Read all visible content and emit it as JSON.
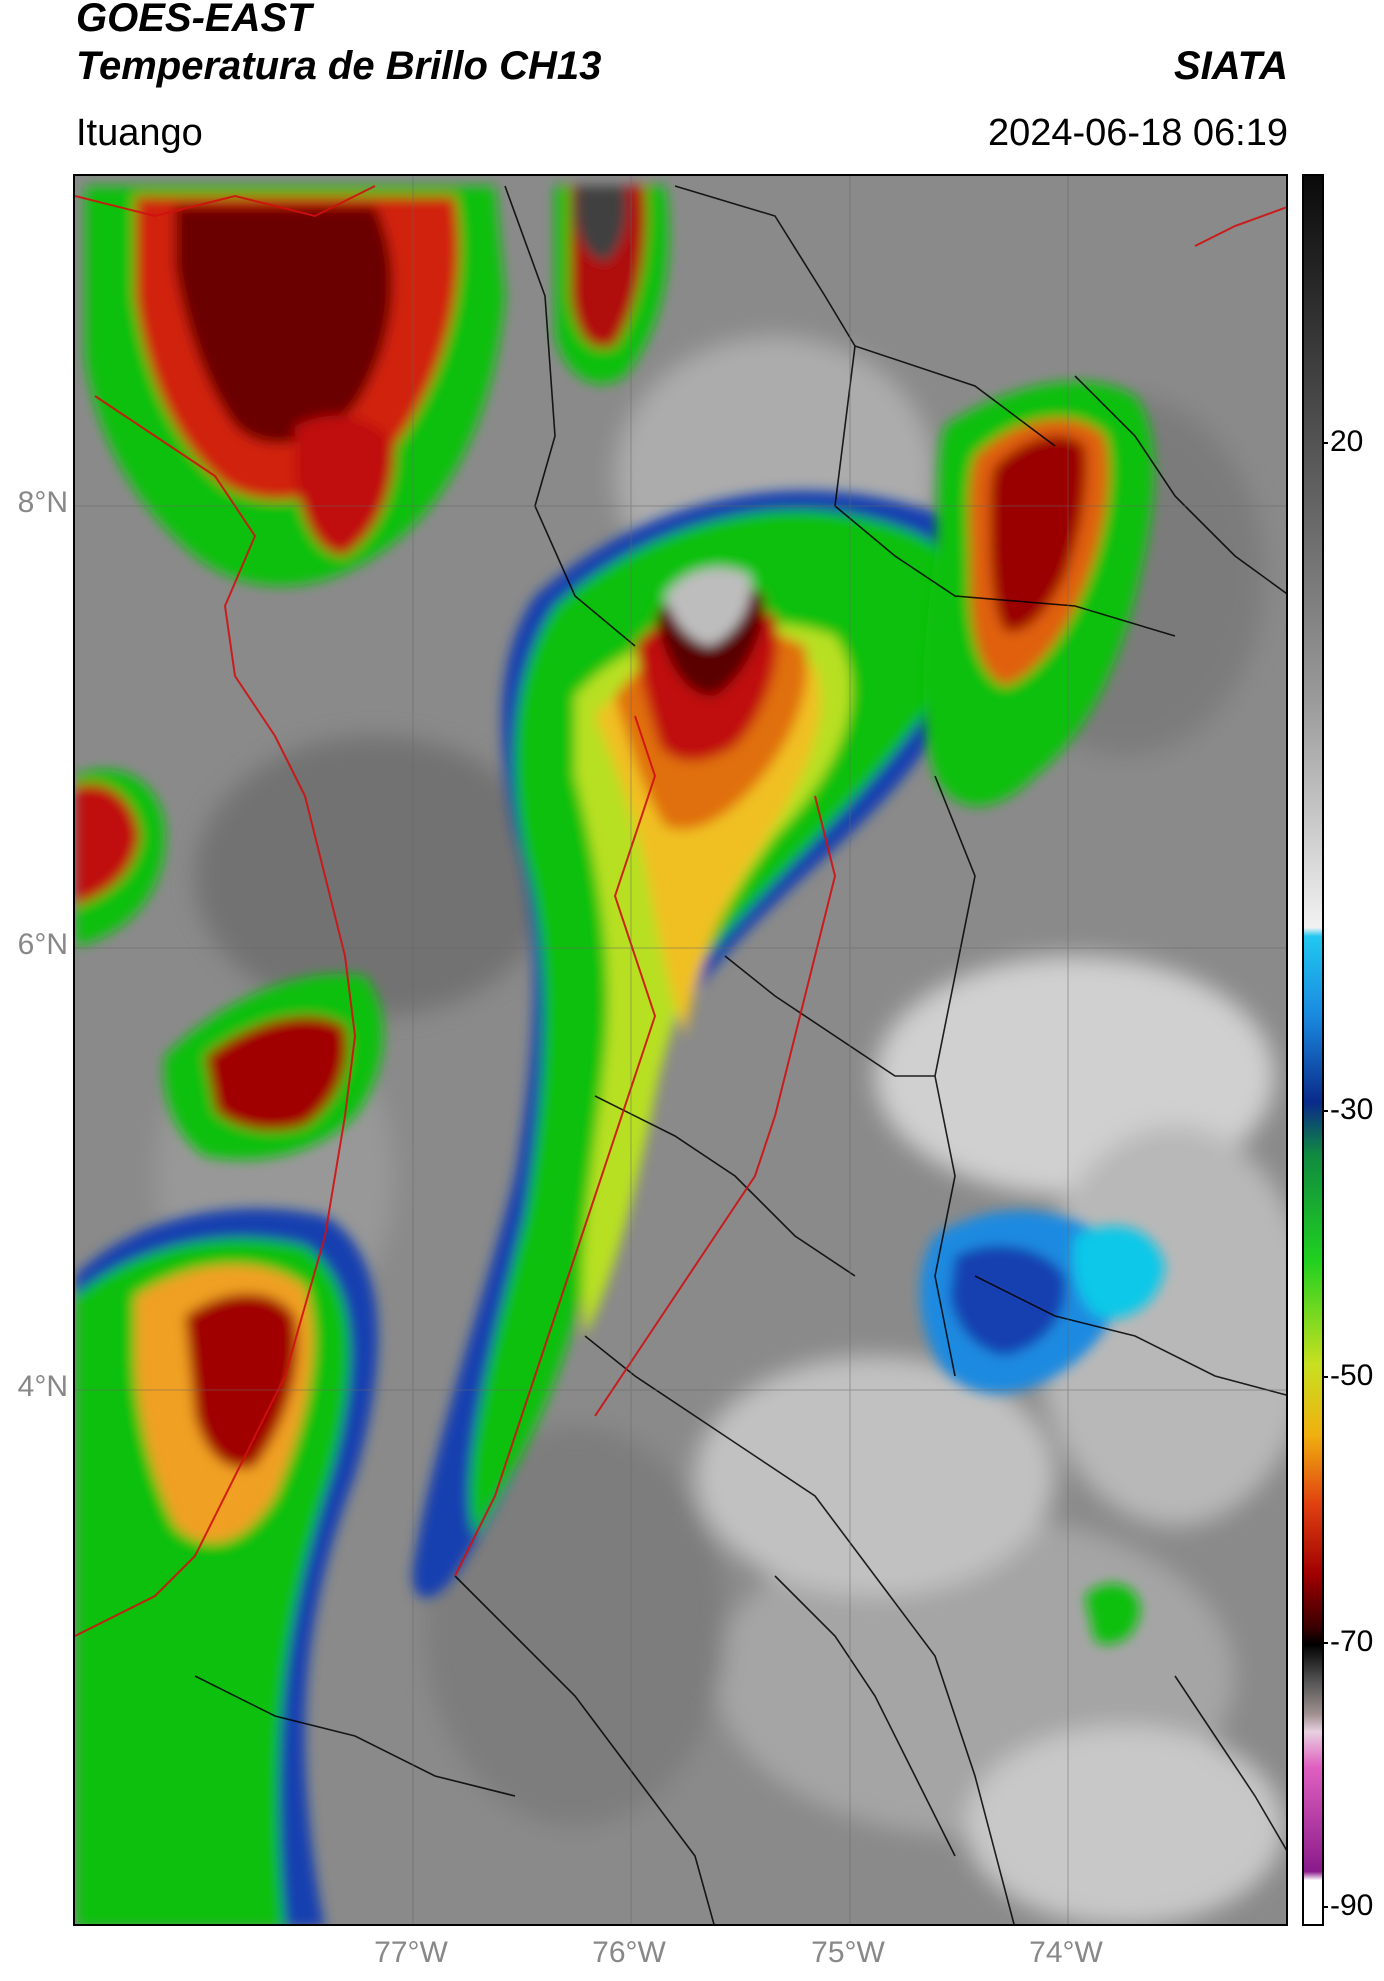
{
  "header": {
    "satellite": "GOES-EAST",
    "product": "Temperatura de Brillo CH13",
    "brand": "SIATA",
    "location": "Ituango",
    "timestamp": "2024-06-18 06:19"
  },
  "map": {
    "lat_labels": [
      "8°N",
      "6°N",
      "4°N"
    ],
    "lon_labels": [
      "77°W",
      "76°W",
      "75°W",
      "74°W"
    ]
  },
  "colorbar": {
    "ticks": [
      "20",
      "-30",
      "-50",
      "-70",
      "-90"
    ]
  }
}
